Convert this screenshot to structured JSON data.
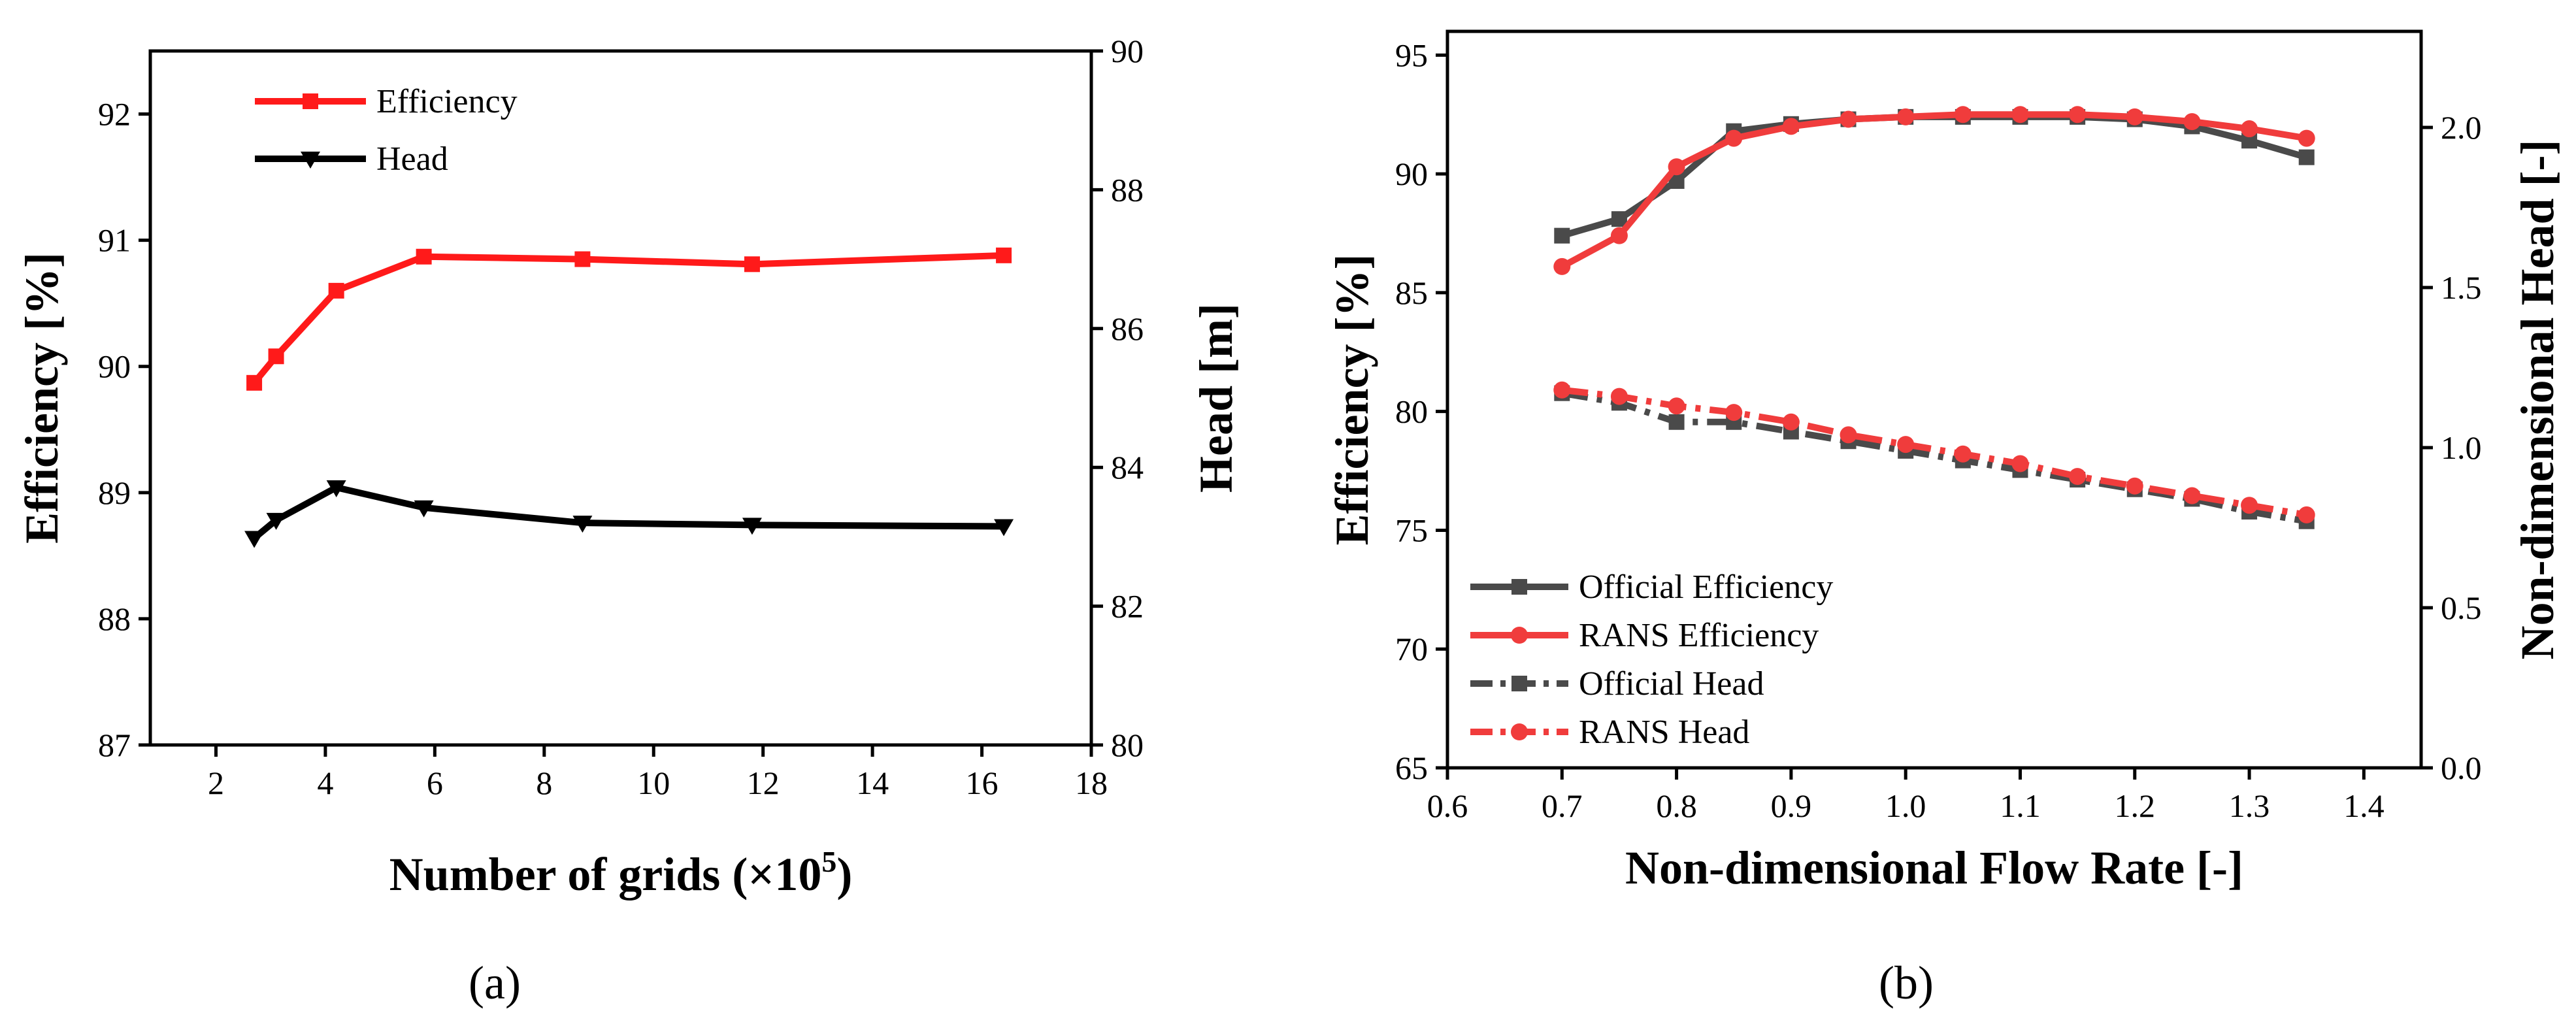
{
  "panels": {
    "a": {
      "label": "(a)"
    },
    "b": {
      "label": "(b)"
    }
  },
  "chart_data": [
    {
      "id": "a",
      "type": "line",
      "title": "",
      "xlabel": "Number of grids (×10",
      "xlabel_sup": "5",
      "xlabel_end": ")",
      "ylabel": "Efficiency [%]",
      "y2label": "Head [m]",
      "xlim": [
        0.8,
        18
      ],
      "ylim": [
        87,
        92.5
      ],
      "y2lim": [
        80,
        90
      ],
      "xticks": [
        2,
        4,
        6,
        8,
        10,
        12,
        14,
        16,
        18
      ],
      "yticks": [
        87,
        88,
        89,
        90,
        91,
        92
      ],
      "y2ticks": [
        80,
        82,
        84,
        86,
        88,
        90
      ],
      "legend_position": "top-left",
      "series": [
        {
          "name": "Efficiency",
          "axis": "left",
          "color": "#ff1a1a",
          "marker": "square",
          "dash": "solid",
          "x": [
            2.7,
            3.1,
            4.2,
            5.8,
            8.7,
            11.8,
            16.4
          ],
          "values": [
            89.87,
            90.08,
            90.6,
            90.87,
            90.85,
            90.81,
            90.88
          ]
        },
        {
          "name": "Head",
          "axis": "right",
          "color": "#000000",
          "marker": "triangle-down",
          "dash": "solid",
          "x": [
            2.7,
            3.1,
            4.2,
            5.8,
            8.7,
            11.8,
            16.4
          ],
          "values": [
            82.98,
            83.24,
            83.71,
            83.42,
            83.2,
            83.17,
            83.15
          ]
        }
      ]
    },
    {
      "id": "b",
      "type": "line",
      "title": "",
      "xlabel": "Non-dimensional Flow Rate [-]",
      "ylabel": "Efficiency [%]",
      "y2label": "Non-dimensional Head [-]",
      "xlim": [
        0.6,
        1.45
      ],
      "ylim": [
        65,
        96
      ],
      "y2lim": [
        0,
        2.3
      ],
      "xticks": [
        0.6,
        0.7,
        0.8,
        0.9,
        1.0,
        1.1,
        1.2,
        1.3,
        1.4
      ],
      "xtick_labels": [
        "0.6",
        "0.7",
        "0.8",
        "0.9",
        "1.0",
        "1.1",
        "1.2",
        "1.3",
        "1.4"
      ],
      "yticks": [
        65,
        70,
        75,
        80,
        85,
        90,
        95
      ],
      "y2ticks": [
        0,
        0.5,
        1.0,
        1.5,
        2.0
      ],
      "y2tick_labels": [
        "0.0",
        "0.5",
        "1.0",
        "1.5",
        "2.0"
      ],
      "legend_position": "bottom-left",
      "series": [
        {
          "name": "Official Efficiency",
          "axis": "left",
          "color": "#4a4a4a",
          "marker": "square",
          "dash": "solid",
          "x": [
            0.7,
            0.75,
            0.8,
            0.85,
            0.9,
            0.95,
            1.0,
            1.05,
            1.1,
            1.15,
            1.2,
            1.25,
            1.3,
            1.35
          ],
          "values": [
            87.4,
            88.1,
            89.7,
            91.8,
            92.1,
            92.3,
            92.4,
            92.4,
            92.4,
            92.4,
            92.3,
            92.0,
            91.4,
            90.7
          ]
        },
        {
          "name": "RANS Efficiency",
          "axis": "left",
          "color": "#f03c3c",
          "marker": "circle",
          "dash": "solid",
          "x": [
            0.7,
            0.75,
            0.8,
            0.85,
            0.9,
            0.95,
            1.0,
            1.05,
            1.1,
            1.15,
            1.2,
            1.25,
            1.3,
            1.35
          ],
          "values": [
            86.1,
            87.4,
            90.3,
            91.5,
            92.0,
            92.3,
            92.4,
            92.5,
            92.5,
            92.5,
            92.4,
            92.2,
            91.9,
            91.5
          ]
        },
        {
          "name": "Official Head",
          "axis": "right",
          "color": "#4a4a4a",
          "marker": "square",
          "dash": "dashdot",
          "x": [
            0.7,
            0.75,
            0.8,
            0.85,
            0.9,
            0.95,
            1.0,
            1.05,
            1.1,
            1.15,
            1.2,
            1.25,
            1.3,
            1.35
          ],
          "values": [
            1.17,
            1.14,
            1.08,
            1.08,
            1.05,
            1.02,
            0.99,
            0.96,
            0.93,
            0.9,
            0.87,
            0.84,
            0.8,
            0.77
          ]
        },
        {
          "name": "RANS Head",
          "axis": "right",
          "color": "#f03c3c",
          "marker": "circle",
          "dash": "dashdot",
          "x": [
            0.7,
            0.75,
            0.8,
            0.85,
            0.9,
            0.95,
            1.0,
            1.05,
            1.1,
            1.15,
            1.2,
            1.25,
            1.3,
            1.35
          ],
          "values": [
            1.18,
            1.16,
            1.13,
            1.11,
            1.08,
            1.04,
            1.01,
            0.98,
            0.95,
            0.91,
            0.88,
            0.85,
            0.82,
            0.79
          ]
        }
      ]
    }
  ]
}
